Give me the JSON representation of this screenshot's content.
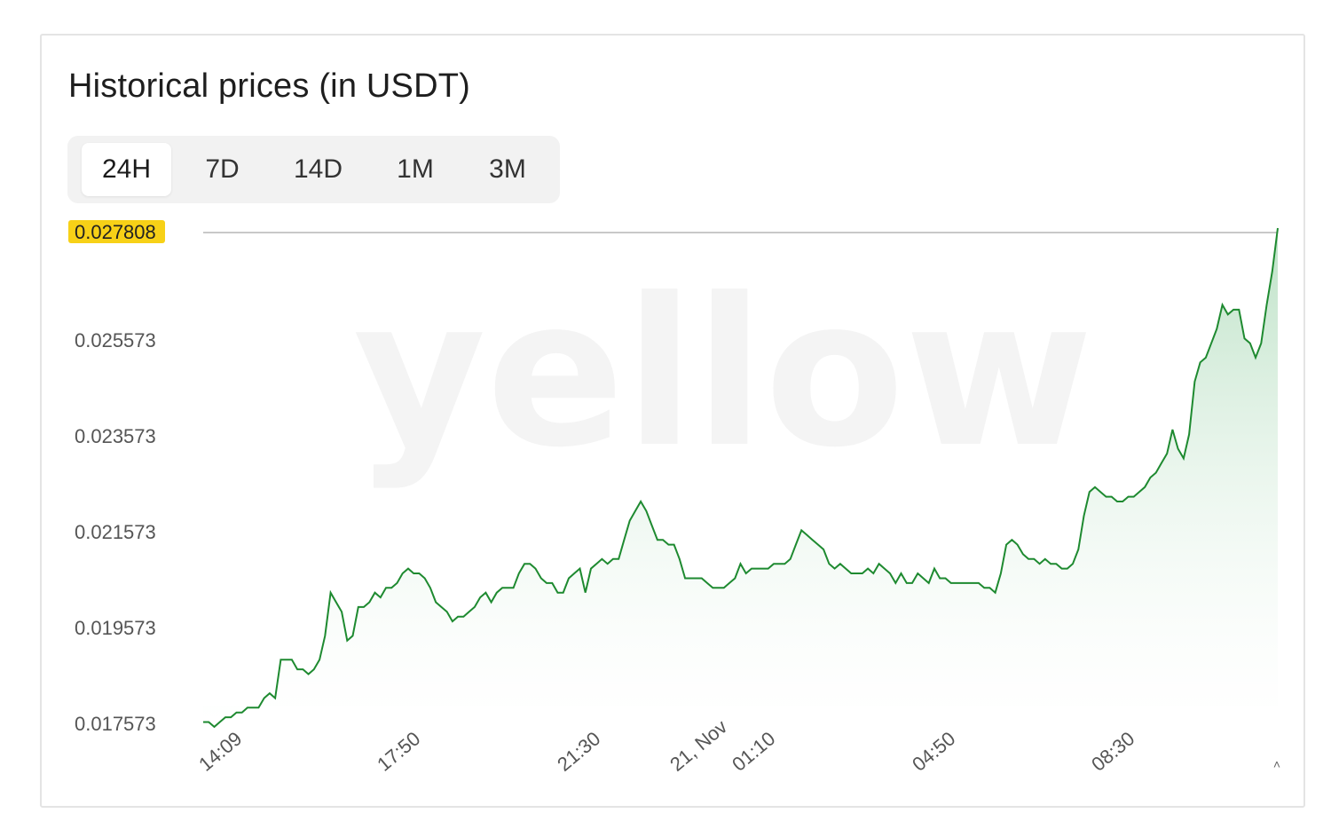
{
  "title": "Historical prices (in USDT)",
  "tabs": [
    {
      "label": "24H",
      "active": true
    },
    {
      "label": "7D",
      "active": false
    },
    {
      "label": "14D",
      "active": false
    },
    {
      "label": "1M",
      "active": false
    },
    {
      "label": "3M",
      "active": false
    }
  ],
  "watermark": "yellow",
  "colors": {
    "line": "#1e8a30",
    "fill_top": "#bfe3c8",
    "current_badge": "#f7d117"
  },
  "chart_data": {
    "type": "area",
    "current_price_label": "0.027808",
    "ytick_labels": [
      "0.025573",
      "0.023573",
      "0.021573",
      "0.019573",
      "0.017573"
    ],
    "ylim": [
      0.017573,
      0.027808
    ],
    "xtick_labels": [
      "14:09",
      "17:50",
      "21:30",
      "21, Nov",
      "01:10",
      "04:50",
      "08:30"
    ],
    "series": [
      {
        "values": [
          0.0176,
          0.0176,
          0.0175,
          0.0176,
          0.0177,
          0.0177,
          0.0178,
          0.0178,
          0.0179,
          0.0179,
          0.0179,
          0.0181,
          0.0182,
          0.0181,
          0.0189,
          0.0189,
          0.0189,
          0.0187,
          0.0187,
          0.0186,
          0.0187,
          0.0189,
          0.0194,
          0.0203,
          0.0201,
          0.0199,
          0.0193,
          0.0194,
          0.02,
          0.02,
          0.0201,
          0.0203,
          0.0202,
          0.0204,
          0.0204,
          0.0205,
          0.0207,
          0.0208,
          0.0207,
          0.0207,
          0.0206,
          0.0204,
          0.0201,
          0.02,
          0.0199,
          0.0197,
          0.0198,
          0.0198,
          0.0199,
          0.02,
          0.0202,
          0.0203,
          0.0201,
          0.0203,
          0.0204,
          0.0204,
          0.0204,
          0.0207,
          0.0209,
          0.0209,
          0.0208,
          0.0206,
          0.0205,
          0.0205,
          0.0203,
          0.0203,
          0.0206,
          0.0207,
          0.0208,
          0.0203,
          0.0208,
          0.0209,
          0.021,
          0.0209,
          0.021,
          0.021,
          0.0214,
          0.0218,
          0.022,
          0.0222,
          0.022,
          0.0217,
          0.0214,
          0.0214,
          0.0213,
          0.0213,
          0.021,
          0.0206,
          0.0206,
          0.0206,
          0.0206,
          0.0205,
          0.0204,
          0.0204,
          0.0204,
          0.0205,
          0.0206,
          0.0209,
          0.0207,
          0.0208,
          0.0208,
          0.0208,
          0.0208,
          0.0209,
          0.0209,
          0.0209,
          0.021,
          0.0213,
          0.0216,
          0.0215,
          0.0214,
          0.0213,
          0.0212,
          0.0209,
          0.0208,
          0.0209,
          0.0208,
          0.0207,
          0.0207,
          0.0207,
          0.0208,
          0.0207,
          0.0209,
          0.0208,
          0.0207,
          0.0205,
          0.0207,
          0.0205,
          0.0205,
          0.0207,
          0.0206,
          0.0205,
          0.0208,
          0.0206,
          0.0206,
          0.0205,
          0.0205,
          0.0205,
          0.0205,
          0.0205,
          0.0205,
          0.0204,
          0.0204,
          0.0203,
          0.0207,
          0.0213,
          0.0214,
          0.0213,
          0.0211,
          0.021,
          0.021,
          0.0209,
          0.021,
          0.0209,
          0.0209,
          0.0208,
          0.0208,
          0.0209,
          0.0212,
          0.0219,
          0.0224,
          0.0225,
          0.0224,
          0.0223,
          0.0223,
          0.0222,
          0.0222,
          0.0223,
          0.0223,
          0.0224,
          0.0225,
          0.0227,
          0.0228,
          0.023,
          0.0232,
          0.0237,
          0.0233,
          0.0231,
          0.0236,
          0.0247,
          0.0251,
          0.0252,
          0.0255,
          0.0258,
          0.0263,
          0.0261,
          0.0262,
          0.0262,
          0.0256,
          0.0255,
          0.0252,
          0.0255,
          0.0263,
          0.027,
          0.0279
        ]
      }
    ]
  }
}
